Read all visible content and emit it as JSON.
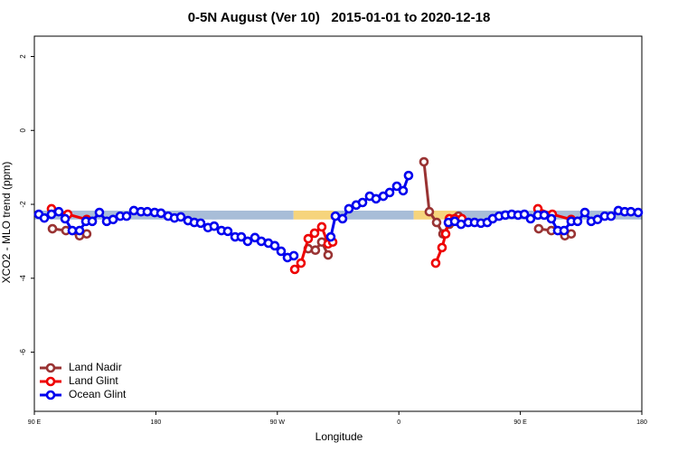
{
  "chart_data": {
    "type": "line",
    "title": "0-5N August (Ver 10)   2015-01-01 to 2020-12-18",
    "xlabel": "Longitude",
    "ylabel": "XCO2 - MLO trend (ppm)",
    "xlim": [
      90,
      540
    ],
    "xticks": [
      {
        "value": 90,
        "label": "90 E"
      },
      {
        "value": 180,
        "label": "180"
      },
      {
        "value": 270,
        "label": "90 W"
      },
      {
        "value": 360,
        "label": "0"
      },
      {
        "value": 450,
        "label": "90 E"
      },
      {
        "value": 540,
        "label": "180"
      }
    ],
    "ylim": [
      -7.6,
      2.55
    ],
    "yticks": [
      2,
      0,
      -2,
      -4,
      -6
    ],
    "legend": "bottom-left",
    "band": {
      "range": [
        -2.41,
        -2.17
      ],
      "segments": [
        {
          "x": [
            90,
            282
          ],
          "color": "#a8bdd8"
        },
        {
          "x": [
            282,
            312
          ],
          "color": "#f6d47c"
        },
        {
          "x": [
            312,
            371
          ],
          "color": "#a8bdd8"
        },
        {
          "x": [
            371,
            403
          ],
          "color": "#f6d47c"
        },
        {
          "x": [
            403,
            540
          ],
          "color": "#a8bdd8"
        }
      ]
    },
    "series": [
      {
        "name": "Land Nadir",
        "color": "#993333",
        "x": [
          103.4,
          113.4,
          123.5,
          128.8,
          null,
          292.9,
          298.2,
          302.9,
          307.6,
          null,
          378.6,
          382.6,
          388.0,
          392.7,
          397.4,
          404.1,
          null,
          463.6,
          473.0,
          483.0,
          487.7
        ],
        "values": [
          -2.66,
          -2.71,
          -2.85,
          -2.8,
          null,
          -3.2,
          -3.24,
          -3.02,
          -3.37,
          null,
          -0.85,
          -2.2,
          -2.49,
          -2.8,
          -2.54,
          -2.32,
          null,
          -2.66,
          -2.71,
          -2.85,
          -2.8
        ]
      },
      {
        "name": "Land Glint",
        "color": "#ee0000",
        "x": [
          102.7,
          114.8,
          128.8,
          null,
          282.9,
          287.5,
          292.9,
          297.6,
          302.9,
          307.6,
          311.0,
          null,
          387.3,
          392.0,
          394.7,
          397.4,
          401.4,
          406.7,
          null,
          463.0,
          473.7,
          487.7
        ],
        "values": [
          -2.12,
          -2.27,
          -2.41,
          null,
          -3.76,
          -3.59,
          -2.93,
          -2.78,
          -2.61,
          -3.07,
          -3.02,
          null,
          -3.59,
          -3.17,
          -2.8,
          -2.39,
          -2.39,
          -2.39,
          null,
          -2.12,
          -2.27,
          -2.41
        ]
      },
      {
        "name": "Ocean Glint",
        "color": "#0000ee",
        "x": [
          93.3,
          97.4,
          102.7,
          108.1,
          112.8,
          118.1,
          123.5,
          128.2,
          132.9,
          138.2,
          143.6,
          148.3,
          153.6,
          158.3,
          163.7,
          169.0,
          173.7,
          179.1,
          183.8,
          189.1,
          193.8,
          198.5,
          203.8,
          208.5,
          213.2,
          218.6,
          223.2,
          228.6,
          233.3,
          238.7,
          243.3,
          248.0,
          253.4,
          258.1,
          263.4,
          268.1,
          272.8,
          277.5,
          282.2,
          null,
          309.6,
          313.0,
          318.3,
          323.0,
          328.4,
          333.1,
          338.4,
          343.1,
          348.5,
          353.2,
          358.5,
          363.2,
          367.2,
          null,
          396.7,
          401.4,
          406.1,
          411.4,
          416.1,
          420.8,
          425.5,
          429.5,
          434.2,
          438.9,
          443.6,
          448.3,
          453.0,
          457.6,
          463.0,
          467.7,
          473.0,
          477.7,
          482.4,
          487.7,
          492.4,
          497.8,
          502.5,
          507.2,
          512.5,
          517.2,
          522.6,
          527.3,
          531.9,
          537.3
        ],
        "values": [
          -2.27,
          -2.37,
          -2.27,
          -2.2,
          -2.39,
          -2.71,
          -2.71,
          -2.46,
          -2.46,
          -2.22,
          -2.46,
          -2.41,
          -2.32,
          -2.32,
          -2.17,
          -2.2,
          -2.2,
          -2.22,
          -2.24,
          -2.32,
          -2.37,
          -2.34,
          -2.44,
          -2.49,
          -2.51,
          -2.63,
          -2.59,
          -2.71,
          -2.73,
          -2.88,
          -2.88,
          -3.0,
          -2.9,
          -3.0,
          -3.05,
          -3.12,
          -3.27,
          -3.44,
          -3.39,
          null,
          -2.88,
          -2.32,
          -2.39,
          -2.12,
          -2.02,
          -1.95,
          -1.78,
          -1.85,
          -1.78,
          -1.68,
          -1.51,
          -1.63,
          -1.22,
          null,
          -2.49,
          -2.46,
          -2.54,
          -2.49,
          -2.49,
          -2.51,
          -2.49,
          -2.39,
          -2.32,
          -2.29,
          -2.27,
          -2.29,
          -2.27,
          -2.39,
          -2.29,
          -2.29,
          -2.39,
          -2.71,
          -2.71,
          -2.46,
          -2.46,
          -2.22,
          -2.46,
          -2.41,
          -2.32,
          -2.32,
          -2.17,
          -2.2,
          -2.2,
          -2.22
        ]
      }
    ]
  }
}
